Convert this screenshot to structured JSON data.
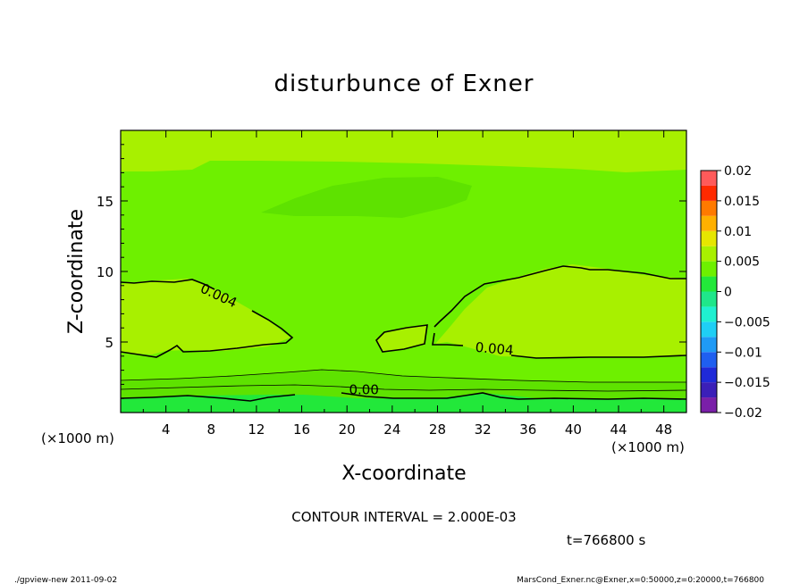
{
  "chart_data": {
    "type": "heatmap",
    "title": "disturbunce of Exner",
    "xlabel": "X-coordinate",
    "ylabel": "Z-coordinate",
    "x_unit_left": "(×1000 m)",
    "x_unit_right": "(×1000 m)",
    "xlim": [
      0,
      50
    ],
    "ylim": [
      0,
      20
    ],
    "x_ticks": [
      4,
      8,
      12,
      16,
      20,
      24,
      28,
      32,
      36,
      40,
      44,
      48
    ],
    "y_ticks": [
      5,
      10,
      15
    ],
    "colorbar": {
      "levels": [
        -0.02,
        -0.0175,
        -0.015,
        -0.0125,
        -0.01,
        -0.0075,
        -0.005,
        -0.0025,
        0,
        0.0025,
        0.005,
        0.0075,
        0.01,
        0.0125,
        0.015,
        0.0175,
        0.02
      ],
      "colors": [
        "#7a1fa8",
        "#3b1fb8",
        "#1f2ad8",
        "#1f5ff0",
        "#1f9af5",
        "#1fcff5",
        "#1ff0d0",
        "#1fe68a",
        "#22e83a",
        "#6ef000",
        "#a8f000",
        "#e6e600",
        "#ffb000",
        "#ff7a00",
        "#ff2a00",
        "#ff5a5a",
        "#ff9f9f"
      ],
      "tick_labels": [
        "0.02",
        "0.015",
        "0.01",
        "0.005",
        "0",
        "−0.005",
        "−0.01",
        "−0.015",
        "−0.02"
      ],
      "tick_values": [
        0.02,
        0.015,
        0.01,
        0.005,
        0,
        -0.005,
        -0.01,
        -0.015,
        -0.02
      ]
    },
    "contour_labels": [
      {
        "text": "0.004",
        "x": 8.5,
        "z": 8.0,
        "angle": 25
      },
      {
        "text": "0.004",
        "x": 33,
        "z": 4.2,
        "angle": 5
      },
      {
        "text": "0.00",
        "x": 21.5,
        "z": 1.3,
        "angle": 0
      }
    ],
    "contour_interval": "CONTOUR INTERVAL = 2.000E-03",
    "time_label": "t=766800 s"
  },
  "footer": {
    "left": "./gpview-new  2011-09-02",
    "right": "MarsCond_Exner.nc@Exner,x=0:50000,z=0:20000,t=766800"
  },
  "colors": {
    "field_high": "#a8f000",
    "field_mid": "#6ef000",
    "field_low": "#22e83a",
    "field_dark": "#58e800"
  }
}
